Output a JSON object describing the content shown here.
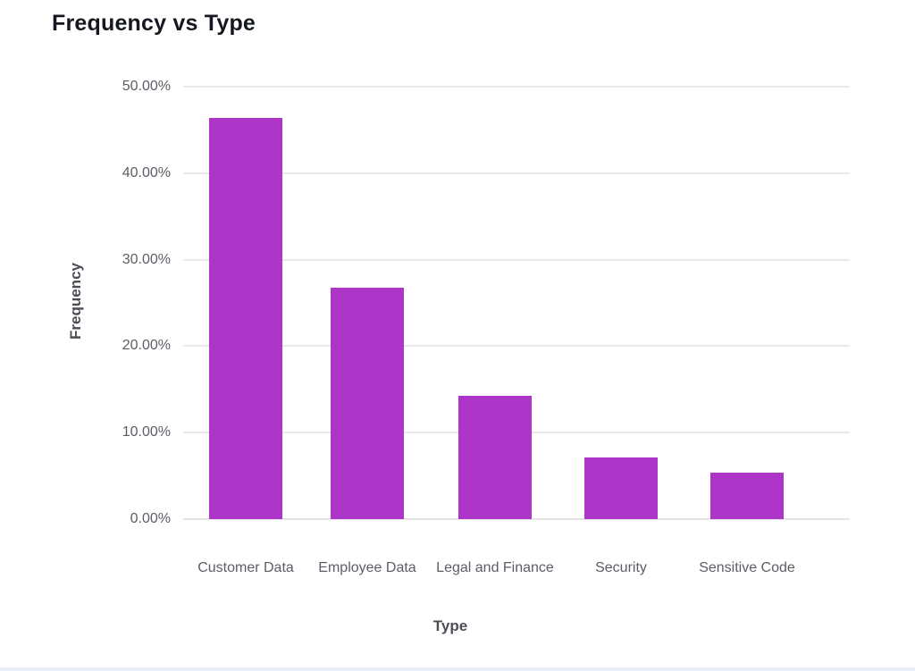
{
  "chart_data": {
    "type": "bar",
    "title": "Frequency vs Type",
    "xlabel": "Type",
    "ylabel": "Frequency",
    "categories": [
      "Customer Data",
      "Employee Data",
      "Legal and Finance",
      "Security",
      "Sensitive Code"
    ],
    "values": [
      46.43,
      26.79,
      14.29,
      7.14,
      5.36
    ],
    "value_format": "percent",
    "ylim": [
      0,
      50
    ],
    "yticks": [
      0,
      10,
      20,
      30,
      40,
      50
    ],
    "ytick_labels": [
      "0.00%",
      "10.00%",
      "20.00%",
      "30.00%",
      "40.00%",
      "50.00%"
    ],
    "grid": true,
    "legend": false,
    "bar_color": "#ad36c8"
  },
  "colors": {
    "background": "#ffffff",
    "bar": "#ad36c8",
    "gridline": "#e9e9eb",
    "tick_text": "#5b5e66",
    "axis_title_text": "#4a4d54",
    "title_text": "#15181e",
    "bottom_edge": "#e7eef7"
  }
}
